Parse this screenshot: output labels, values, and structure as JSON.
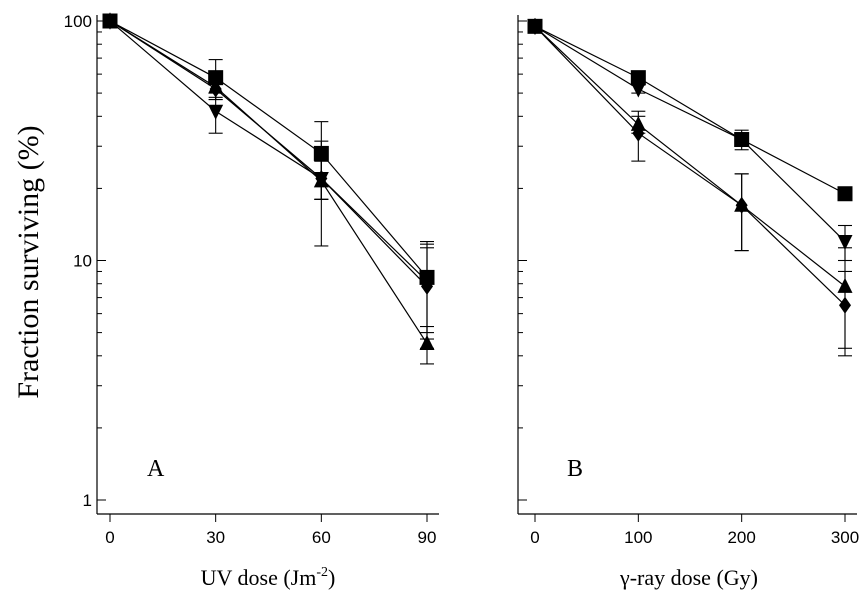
{
  "chart_data": {
    "ylabel": "Fraction surviving (%)",
    "yscale": "log",
    "ylim": [
      1,
      100
    ],
    "y_ticks": [
      "1",
      "10",
      "100"
    ],
    "panels": [
      {
        "type": "line",
        "panel_label": "A",
        "xlabel_main": "UV dose (Jm",
        "xlabel_sup": "-2",
        "xlabel_close": ")",
        "x": [
          0,
          30,
          60,
          90
        ],
        "x_ticks": [
          "0",
          "30",
          "60",
          "90"
        ],
        "xlim": [
          0,
          90
        ],
        "series": [
          {
            "marker": "square",
            "values": [
              100,
              58,
              28,
              8.5
            ],
            "error": [
              0,
              11,
              10,
              3.5
            ]
          },
          {
            "marker": "triangle",
            "values": [
              100,
              53,
              21.5,
              4.5
            ],
            "error": [
              0,
              5,
              10,
              0.8
            ]
          },
          {
            "marker": "diamond",
            "values": [
              100,
              52,
              22,
              7.8
            ],
            "error": [
              0,
              5,
              4,
              3.5
            ]
          },
          {
            "marker": "triangle-down",
            "values": [
              100,
              42,
              22,
              8.2
            ],
            "error": [
              0,
              8,
              4,
              3.5
            ]
          }
        ]
      },
      {
        "type": "line",
        "panel_label": "B",
        "xlabel_main": "γ-ray dose (Gy)",
        "x": [
          0,
          100,
          200,
          300
        ],
        "x_ticks": [
          "0",
          "100",
          "200",
          "300"
        ],
        "xlim": [
          0,
          300
        ],
        "series": [
          {
            "marker": "square",
            "values": [
              95,
              58,
              32,
              19
            ],
            "error": [
              0,
              2,
              3,
              0
            ]
          },
          {
            "marker": "triangle-down",
            "values": [
              95,
              52,
              32,
              12
            ],
            "error": [
              0,
              2,
              2,
              2
            ]
          },
          {
            "marker": "triangle",
            "values": [
              95,
              37,
              17,
              7.8
            ],
            "error": [
              0,
              3,
              6,
              3.5
            ]
          },
          {
            "marker": "diamond",
            "values": [
              95,
              34,
              17,
              6.5
            ],
            "error": [
              0,
              8,
              6,
              2.5
            ]
          }
        ]
      }
    ]
  }
}
